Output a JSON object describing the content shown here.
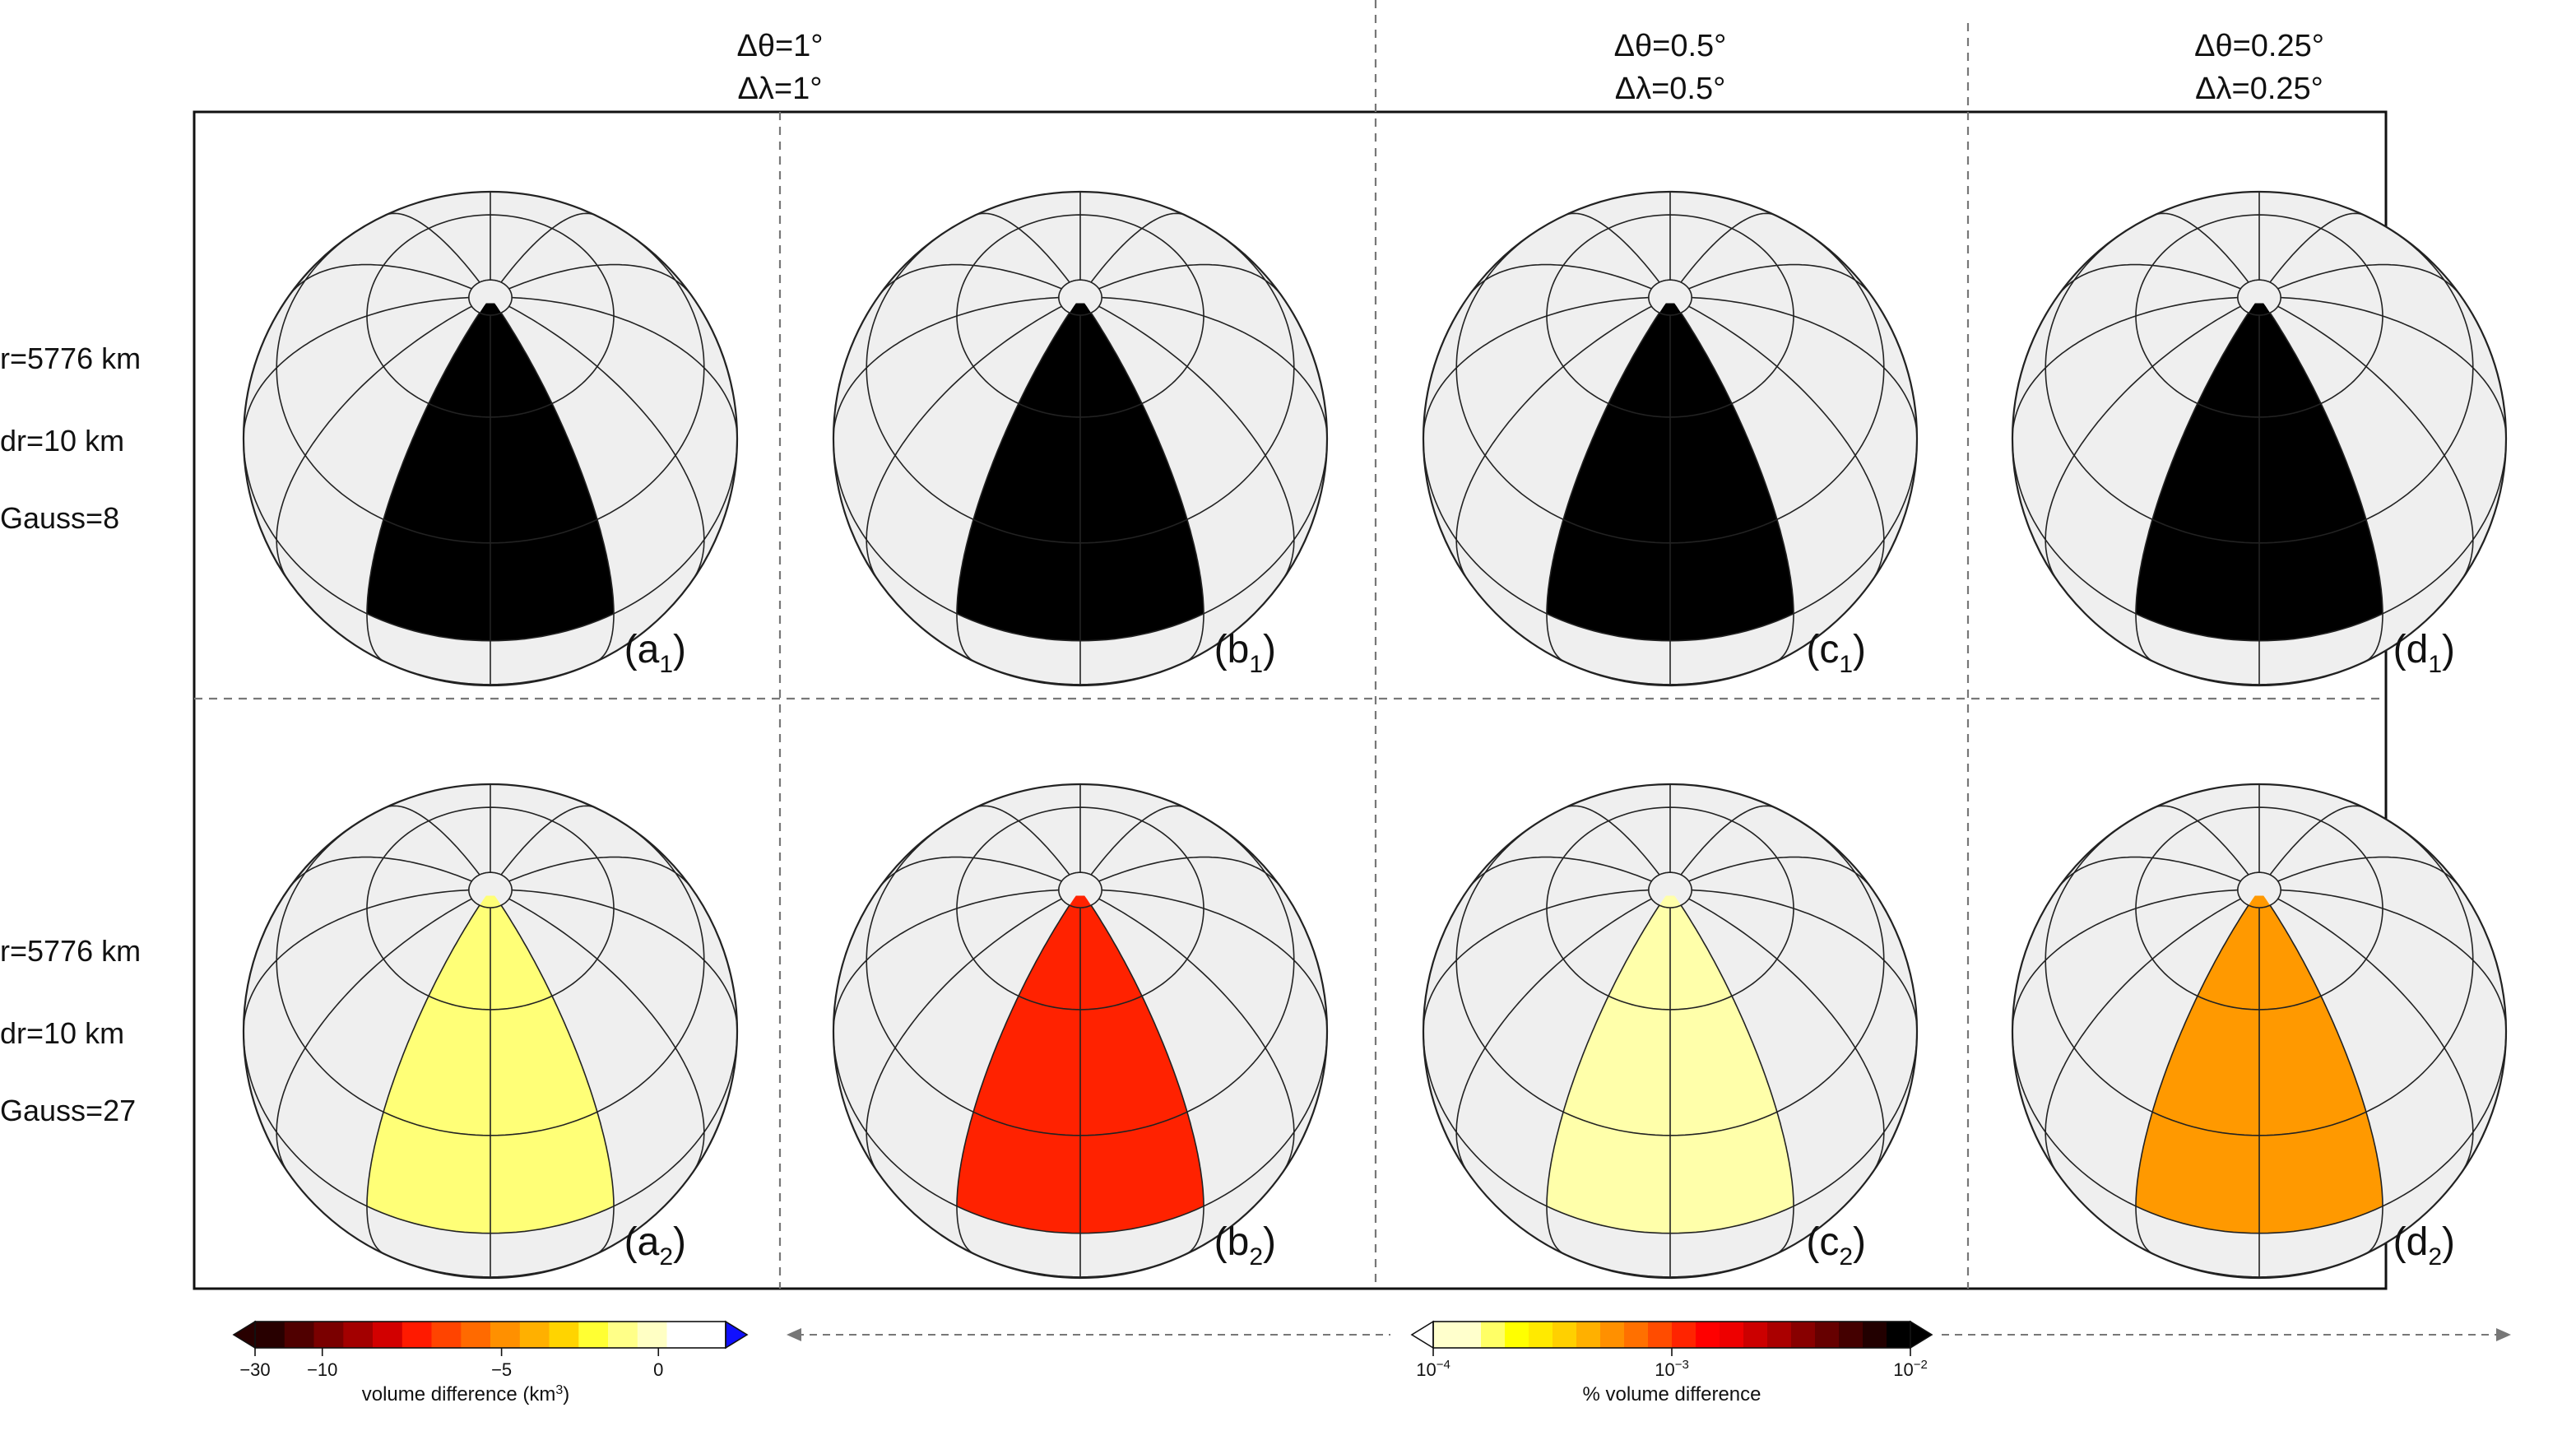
{
  "header": {
    "columns": [
      {
        "theta": "Δθ=1°",
        "lambda": "Δλ=1°"
      },
      {
        "theta": "Δθ=0.5°",
        "lambda": "Δλ=0.5°"
      },
      {
        "theta": "Δθ=0.25°",
        "lambda": "Δλ=0.25°"
      }
    ]
  },
  "rows": [
    {
      "r": "r=5776 km",
      "dr": "dr=10 km",
      "gauss": "Gauss=8",
      "panels": [
        {
          "letter": "a",
          "sub": "1",
          "fill": "#000000"
        },
        {
          "letter": "b",
          "sub": "1",
          "fill": "#000000"
        },
        {
          "letter": "c",
          "sub": "1",
          "fill": "#000000"
        },
        {
          "letter": "d",
          "sub": "1",
          "fill": "#000000"
        }
      ]
    },
    {
      "r": "r=5776 km",
      "dr": "dr=10 km",
      "gauss": "Gauss=27",
      "panels": [
        {
          "letter": "a",
          "sub": "2",
          "fill": "#ffff77"
        },
        {
          "letter": "b",
          "sub": "2",
          "fill": "#ff2200"
        },
        {
          "letter": "c",
          "sub": "2",
          "fill": "#ffffaa"
        },
        {
          "letter": "d",
          "sub": "2",
          "fill": "#ff9900"
        }
      ]
    }
  ],
  "colorbars": {
    "left": {
      "title_text": "volume difference (km",
      "title_sup": "3",
      "title_close": ")",
      "ticks": [
        {
          "label": "−30",
          "frac": 0.0
        },
        {
          "label": "−10",
          "frac": 0.1429
        },
        {
          "label": "−5",
          "frac": 0.5238
        },
        {
          "label": "0",
          "frac": 0.8571
        }
      ],
      "colors": [
        "#280000",
        "#500000",
        "#7a0000",
        "#a30000",
        "#d20000",
        "#ff1a00",
        "#ff4400",
        "#ff6a00",
        "#ff9000",
        "#ffb000",
        "#ffd400",
        "#ffff33",
        "#ffff88",
        "#ffffc4",
        "#ffffff",
        "#ffffff"
      ],
      "over_color": "#1010ff"
    },
    "right": {
      "title": "% volume difference",
      "ticks": [
        {
          "base": "10",
          "exp": "−4",
          "frac": 0.0
        },
        {
          "base": "10",
          "exp": "−3",
          "frac": 0.5
        },
        {
          "base": "10",
          "exp": "−2",
          "frac": 1.0
        }
      ],
      "colors": [
        "#ffffcc",
        "#ffffcc",
        "#ffff66",
        "#ffff00",
        "#ffea00",
        "#ffd000",
        "#ffb000",
        "#ff9000",
        "#ff7000",
        "#ff4c00",
        "#ff2400",
        "#ff0000",
        "#ee0000",
        "#cc0000",
        "#aa0000",
        "#880000",
        "#660000",
        "#440000",
        "#220000",
        "#000000"
      ],
      "under_color": "#ffffff"
    }
  },
  "colors": {
    "globe_bg": "#efefef",
    "frame": "#111111",
    "grid": "#222222",
    "dash": "#777777"
  }
}
